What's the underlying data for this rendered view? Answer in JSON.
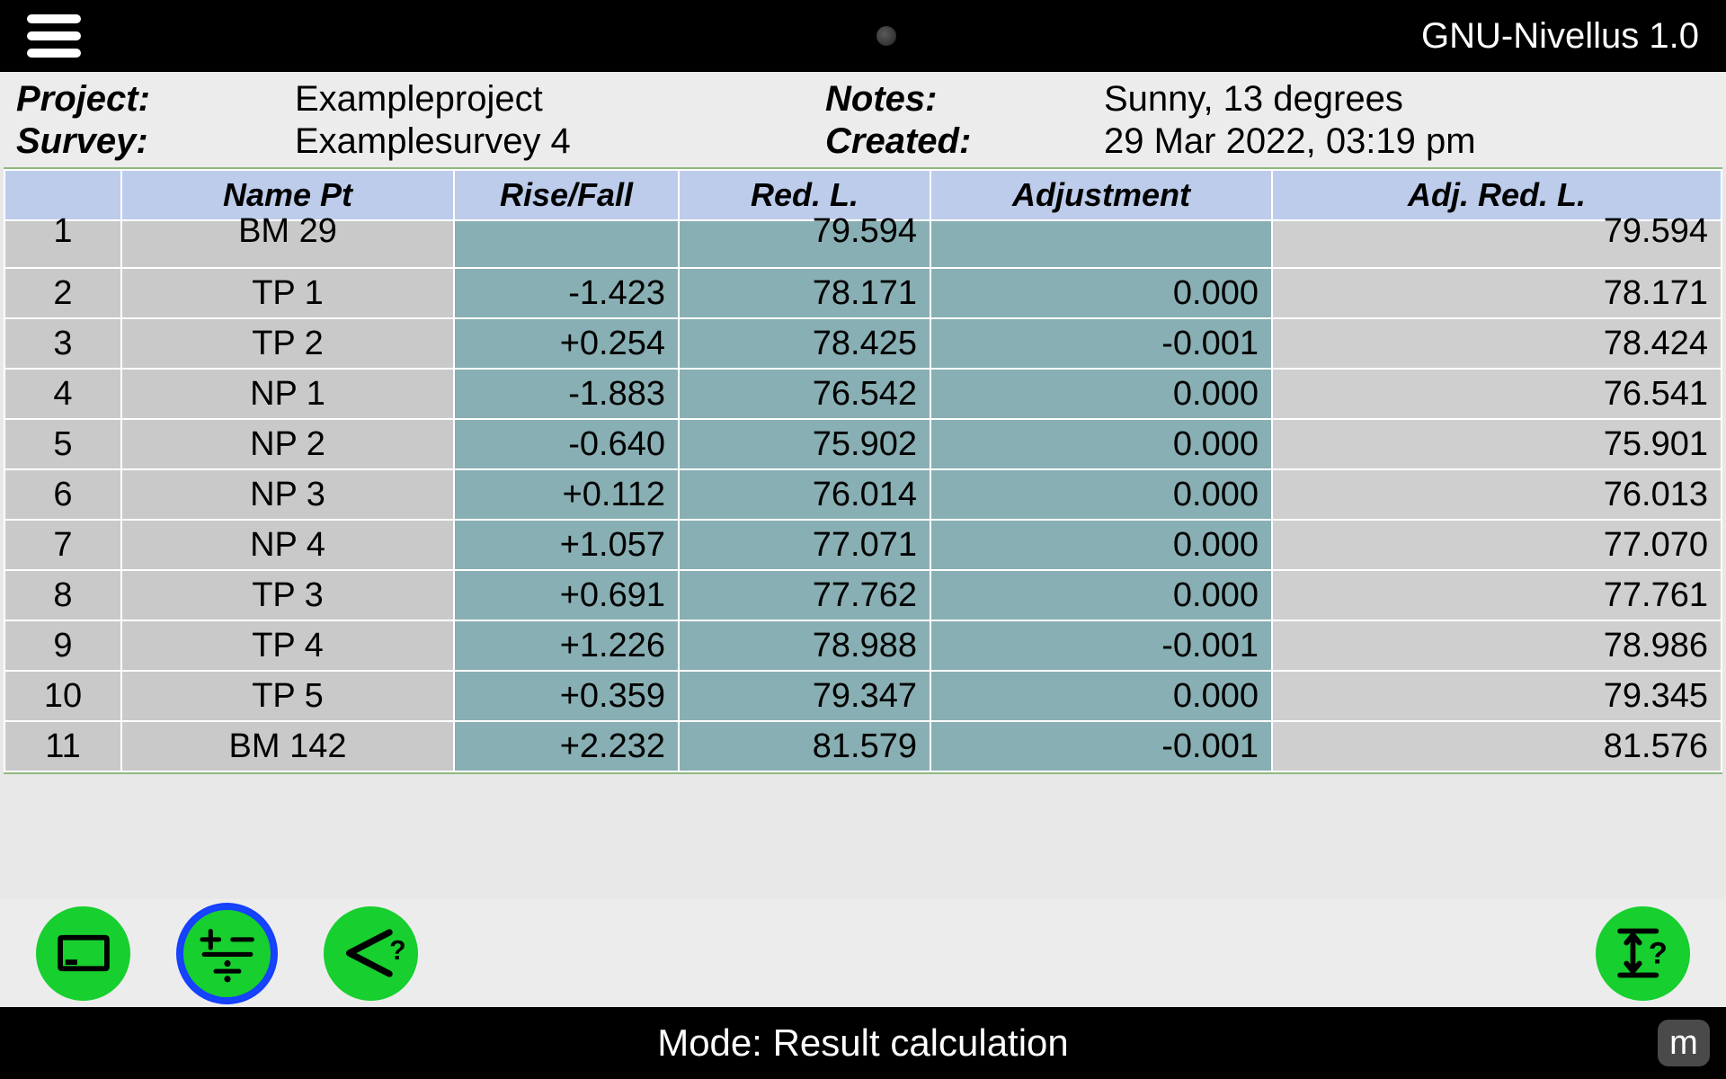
{
  "app": {
    "title": "GNU-Nivellus 1.0"
  },
  "meta": {
    "project_label": "Project:",
    "project_value": "Exampleproject",
    "survey_label": "Survey:",
    "survey_value": "Examplesurvey 4",
    "notes_label": "Notes:",
    "notes_value": "Sunny, 13 degrees",
    "created_label": "Created:",
    "created_value": "29 Mar 2022, 03:19 pm"
  },
  "table": {
    "header_bg": "#bcccea",
    "teal_bg": "#88afb3",
    "grey_bg": "#c9c9c9",
    "adjrl_bg": "#cfcfcf",
    "columns": {
      "idx": "",
      "name": "Name Pt",
      "rf": "Rise/Fall",
      "redl": "Red. L.",
      "adj": "Adjustment",
      "adjrl": "Adj. Red. L."
    },
    "rows": [
      {
        "idx": "1",
        "name": "BM 29",
        "rf": "",
        "redl": "79.594",
        "adj": "",
        "adjrl": "79.594"
      },
      {
        "idx": "2",
        "name": "TP 1",
        "rf": "-1.423",
        "redl": "78.171",
        "adj": "0.000",
        "adjrl": "78.171"
      },
      {
        "idx": "3",
        "name": "TP 2",
        "rf": "+0.254",
        "redl": "78.425",
        "adj": "-0.001",
        "adjrl": "78.424"
      },
      {
        "idx": "4",
        "name": "NP 1",
        "rf": "-1.883",
        "redl": "76.542",
        "adj": "0.000",
        "adjrl": "76.541"
      },
      {
        "idx": "5",
        "name": "NP 2",
        "rf": "-0.640",
        "redl": "75.902",
        "adj": "0.000",
        "adjrl": "75.901"
      },
      {
        "idx": "6",
        "name": "NP 3",
        "rf": "+0.112",
        "redl": "76.014",
        "adj": "0.000",
        "adjrl": "76.013"
      },
      {
        "idx": "7",
        "name": "NP 4",
        "rf": "+1.057",
        "redl": "77.071",
        "adj": "0.000",
        "adjrl": "77.070"
      },
      {
        "idx": "8",
        "name": "TP 3",
        "rf": "+0.691",
        "redl": "77.762",
        "adj": "0.000",
        "adjrl": "77.761"
      },
      {
        "idx": "9",
        "name": "TP 4",
        "rf": "+1.226",
        "redl": "78.988",
        "adj": "-0.001",
        "adjrl": "78.986"
      },
      {
        "idx": "10",
        "name": "TP 5",
        "rf": "+0.359",
        "redl": "79.347",
        "adj": "0.000",
        "adjrl": "79.345"
      },
      {
        "idx": "11",
        "name": "BM 142",
        "rf": "+2.232",
        "redl": "81.579",
        "adj": "-0.001",
        "adjrl": "81.576"
      }
    ]
  },
  "toolbar": {
    "btn_green": "#17cf2e",
    "selected_outline": "#1640ff"
  },
  "status": {
    "mode_text": "Mode: Result calculation",
    "unit_badge": "m"
  }
}
